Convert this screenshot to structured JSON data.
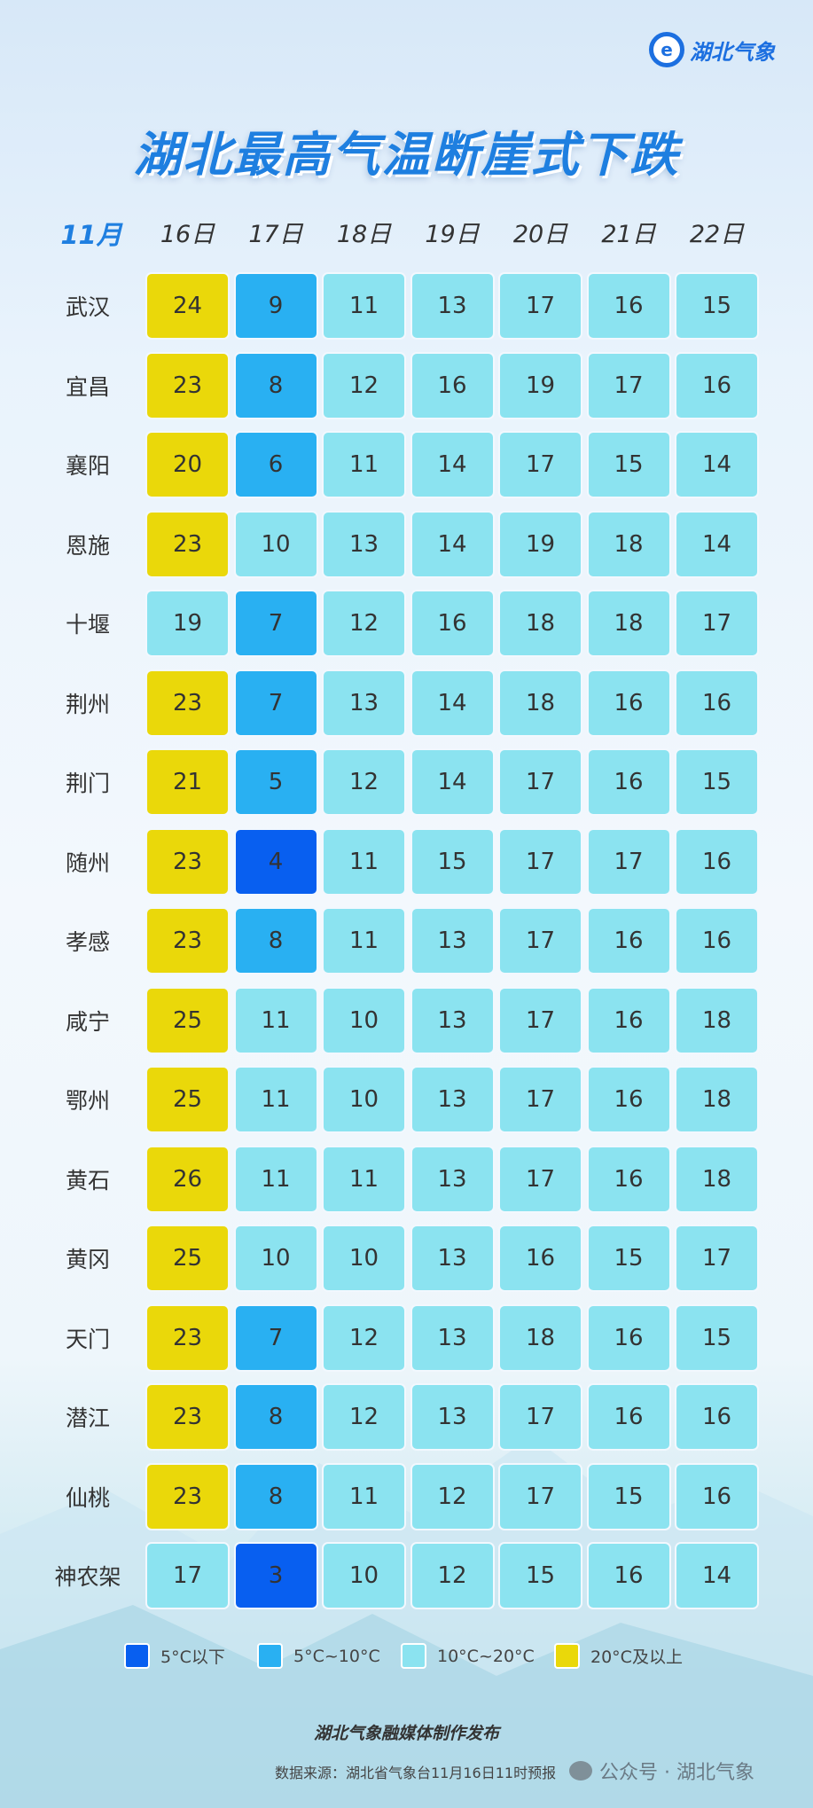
{
  "logo": {
    "text": "湖北气象"
  },
  "title": "湖北最高气温断崖式下跌",
  "header": {
    "month": "11月",
    "days": [
      "16日",
      "17日",
      "18日",
      "19日",
      "20日",
      "21日",
      "22日"
    ]
  },
  "colors": {
    "below5": "#085ff0",
    "5to10": "#29b0f2",
    "10to20": "#8be3f0",
    "20up": "#ead80a"
  },
  "rows": [
    {
      "city": "武汉",
      "temps": [
        24,
        9,
        11,
        13,
        17,
        16,
        15
      ]
    },
    {
      "city": "宜昌",
      "temps": [
        23,
        8,
        12,
        16,
        19,
        17,
        16
      ]
    },
    {
      "city": "襄阳",
      "temps": [
        20,
        6,
        11,
        14,
        17,
        15,
        14
      ]
    },
    {
      "city": "恩施",
      "temps": [
        23,
        10,
        13,
        14,
        19,
        18,
        14
      ]
    },
    {
      "city": "十堰",
      "temps": [
        19,
        7,
        12,
        16,
        18,
        18,
        17
      ]
    },
    {
      "city": "荆州",
      "temps": [
        23,
        7,
        13,
        14,
        18,
        16,
        16
      ]
    },
    {
      "city": "荆门",
      "temps": [
        21,
        5,
        12,
        14,
        17,
        16,
        15
      ]
    },
    {
      "city": "随州",
      "temps": [
        23,
        4,
        11,
        15,
        17,
        17,
        16
      ]
    },
    {
      "city": "孝感",
      "temps": [
        23,
        8,
        11,
        13,
        17,
        16,
        16
      ]
    },
    {
      "city": "咸宁",
      "temps": [
        25,
        11,
        10,
        13,
        17,
        16,
        18
      ]
    },
    {
      "city": "鄂州",
      "temps": [
        25,
        11,
        10,
        13,
        17,
        16,
        18
      ]
    },
    {
      "city": "黄石",
      "temps": [
        26,
        11,
        11,
        13,
        17,
        16,
        18
      ]
    },
    {
      "city": "黄冈",
      "temps": [
        25,
        10,
        10,
        13,
        16,
        15,
        17
      ]
    },
    {
      "city": "天门",
      "temps": [
        23,
        7,
        12,
        13,
        18,
        16,
        15
      ]
    },
    {
      "city": "潜江",
      "temps": [
        23,
        8,
        12,
        13,
        17,
        16,
        16
      ]
    },
    {
      "city": "仙桃",
      "temps": [
        23,
        8,
        11,
        12,
        17,
        15,
        16
      ]
    },
    {
      "city": "神农架",
      "temps": [
        17,
        3,
        10,
        12,
        15,
        16,
        14
      ]
    }
  ],
  "legend": [
    {
      "label": "5°C以下",
      "color": "#085ff0"
    },
    {
      "label": "5°C~10°C",
      "color": "#29b0f2"
    },
    {
      "label": "10°C~20°C",
      "color": "#8be3f0"
    },
    {
      "label": "20°C及以上",
      "color": "#ead80a"
    }
  ],
  "footer": {
    "publisher": "湖北气象融媒体制作发布",
    "source": "数据来源：湖北省气象台11月16日11时预报",
    "wechat": "公众号 · 湖北气象"
  }
}
